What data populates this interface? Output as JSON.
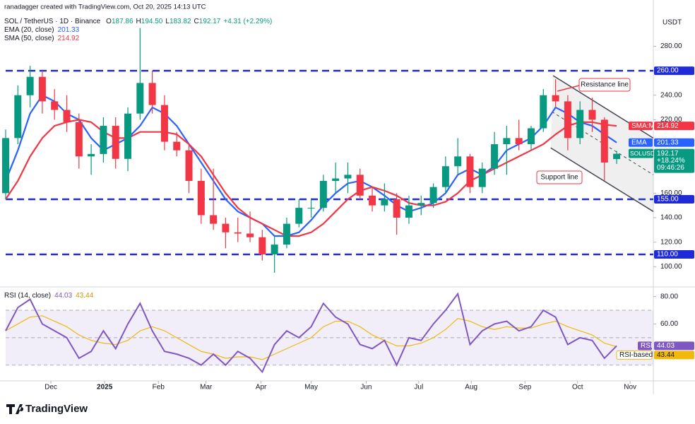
{
  "branding": "TradingView",
  "chart_data": [
    {
      "type": "candlestick",
      "creator": "ranadagger created with TradingView.com, Oct 20, 2025 14:13 UTC",
      "title": "SOL / TetherUS · 1D · Binance",
      "currency": "USDT",
      "ohlc_letters": [
        "O",
        "H",
        "L",
        "C"
      ],
      "last_high_label": "194.50",
      "change": "+4.31 (+2.29%)",
      "symbol_tag": "SOLUSDT",
      "change_pct": "+18.24%",
      "countdown": "09:46:26",
      "up_color": "#089981",
      "down_color": "#f23645",
      "open": [
        160,
        205,
        240,
        255,
        235,
        228,
        218,
        190,
        192,
        215,
        188,
        225,
        250,
        232,
        202,
        195,
        170,
        142,
        135,
        128,
        127,
        124,
        110,
        118,
        135,
        148,
        148,
        170,
        172,
        175,
        158,
        150,
        155,
        140,
        150,
        152,
        165,
        182,
        190,
        165,
        180,
        200,
        205,
        200,
        213,
        240,
        235,
        205,
        228,
        220,
        187.86
      ],
      "high": [
        212,
        248,
        264,
        260,
        245,
        240,
        225,
        200,
        222,
        222,
        230,
        295,
        260,
        240,
        210,
        200,
        180,
        180,
        140,
        140,
        145,
        130,
        125,
        140,
        155,
        155,
        175,
        185,
        185,
        180,
        165,
        168,
        160,
        158,
        158,
        168,
        190,
        205,
        192,
        185,
        210,
        215,
        220,
        215,
        245,
        253,
        240,
        235,
        238,
        222,
        194.5
      ],
      "low": [
        155,
        200,
        230,
        225,
        220,
        210,
        180,
        175,
        185,
        180,
        178,
        220,
        225,
        195,
        190,
        160,
        135,
        130,
        115,
        120,
        120,
        105,
        95,
        115,
        132,
        140,
        145,
        160,
        160,
        155,
        145,
        145,
        126,
        135,
        142,
        148,
        160,
        175,
        160,
        160,
        175,
        175,
        195,
        195,
        210,
        230,
        195,
        200,
        210,
        170,
        183.82
      ],
      "close": [
        205,
        240,
        255,
        235,
        228,
        218,
        190,
        192,
        215,
        188,
        225,
        250,
        232,
        202,
        195,
        170,
        142,
        135,
        128,
        127,
        124,
        110,
        118,
        135,
        148,
        148,
        170,
        172,
        175,
        158,
        150,
        155,
        140,
        150,
        152,
        165,
        182,
        190,
        165,
        180,
        200,
        205,
        200,
        213,
        240,
        235,
        205,
        228,
        220,
        185,
        192.17
      ],
      "series": [
        {
          "name": "EMA (20, close)",
          "short": "EMA",
          "color": "#2962ff",
          "values": [
            170,
            195,
            225,
            240,
            235,
            225,
            220,
            205,
            195,
            200,
            205,
            215,
            230,
            225,
            215,
            200,
            185,
            170,
            155,
            145,
            140,
            135,
            125,
            125,
            128,
            138,
            150,
            160,
            168,
            170,
            165,
            158,
            150,
            145,
            148,
            152,
            160,
            175,
            180,
            175,
            182,
            195,
            200,
            205,
            215,
            230,
            225,
            218,
            215,
            208,
            201.33
          ]
        },
        {
          "name": "SMA (50, close)",
          "short": "SMA:MA",
          "color": "#f23645",
          "values": [
            155,
            170,
            190,
            205,
            215,
            218,
            220,
            218,
            210,
            205,
            205,
            210,
            210,
            210,
            208,
            200,
            190,
            175,
            160,
            148,
            140,
            135,
            130,
            125,
            125,
            128,
            135,
            145,
            155,
            162,
            165,
            162,
            158,
            152,
            150,
            150,
            153,
            160,
            170,
            175,
            180,
            185,
            190,
            195,
            200,
            208,
            215,
            218,
            218,
            216,
            214.92
          ]
        }
      ],
      "levels": [
        {
          "value": 260,
          "label": "260.00"
        },
        {
          "value": 155,
          "label": "155.00"
        },
        {
          "value": 110,
          "label": "110.00"
        }
      ],
      "level_color": "#1e2bd6",
      "channel": {
        "upper": [
          [
            44.8,
            256
          ],
          [
            53,
            205
          ]
        ],
        "lower": [
          [
            44.6,
            197
          ],
          [
            53,
            145
          ]
        ]
      },
      "annotations": [
        "Resistance line",
        "Support line"
      ],
      "xlim": [
        0,
        53
      ],
      "xticks": [
        {
          "value": 3.7,
          "label": "Dec"
        },
        {
          "value": 8.1,
          "label": "2025"
        },
        {
          "value": 12.5,
          "label": "Feb"
        },
        {
          "value": 16.4,
          "label": "Mar"
        },
        {
          "value": 20.9,
          "label": "Apr"
        },
        {
          "value": 25,
          "label": "May"
        },
        {
          "value": 29.5,
          "label": "Jun"
        },
        {
          "value": 33.8,
          "label": "Jul"
        },
        {
          "value": 38.1,
          "label": "Aug"
        },
        {
          "value": 42.5,
          "label": "Sep"
        },
        {
          "value": 46.8,
          "label": "Oct"
        },
        {
          "value": 51.1,
          "label": "Nov"
        }
      ],
      "ylim": [
        84,
        312
      ],
      "yticks": [
        {
          "value": 100,
          "label": "100.00"
        },
        {
          "value": 120,
          "label": "120.00"
        },
        {
          "value": 140,
          "label": "140.00"
        },
        {
          "value": 160,
          "label": "160.00"
        },
        {
          "value": 220,
          "label": "220.00"
        },
        {
          "value": 240,
          "label": "240.00"
        },
        {
          "value": 280,
          "label": "280.00"
        }
      ]
    },
    {
      "type": "line",
      "title": "RSI (14, close)",
      "series": [
        {
          "name": "RSI",
          "color": "#7e57c2",
          "values": [
            55,
            72,
            78,
            60,
            55,
            50,
            35,
            40,
            55,
            42,
            60,
            75,
            55,
            40,
            38,
            35,
            30,
            38,
            30,
            40,
            35,
            25,
            45,
            55,
            50,
            58,
            75,
            65,
            60,
            45,
            42,
            48,
            30,
            50,
            48,
            60,
            70,
            82,
            45,
            55,
            60,
            62,
            55,
            58,
            70,
            65,
            45,
            50,
            48,
            35,
            44.03
          ]
        },
        {
          "name": "RSI-based MA",
          "color": "#f0b90b",
          "values": [
            55,
            60,
            65,
            66,
            62,
            58,
            52,
            48,
            46,
            45,
            48,
            55,
            58,
            55,
            50,
            45,
            40,
            38,
            35,
            36,
            36,
            34,
            38,
            42,
            46,
            50,
            58,
            62,
            62,
            58,
            52,
            48,
            44,
            44,
            46,
            50,
            56,
            64,
            62,
            58,
            56,
            58,
            57,
            57,
            60,
            62,
            58,
            55,
            52,
            46,
            43.44
          ]
        }
      ],
      "band": [
        30,
        70
      ],
      "midline": 50,
      "ylim": [
        19,
        86
      ],
      "yticks": [
        {
          "value": 60,
          "label": "60.00"
        },
        {
          "value": 80,
          "label": "80.00"
        }
      ]
    }
  ]
}
